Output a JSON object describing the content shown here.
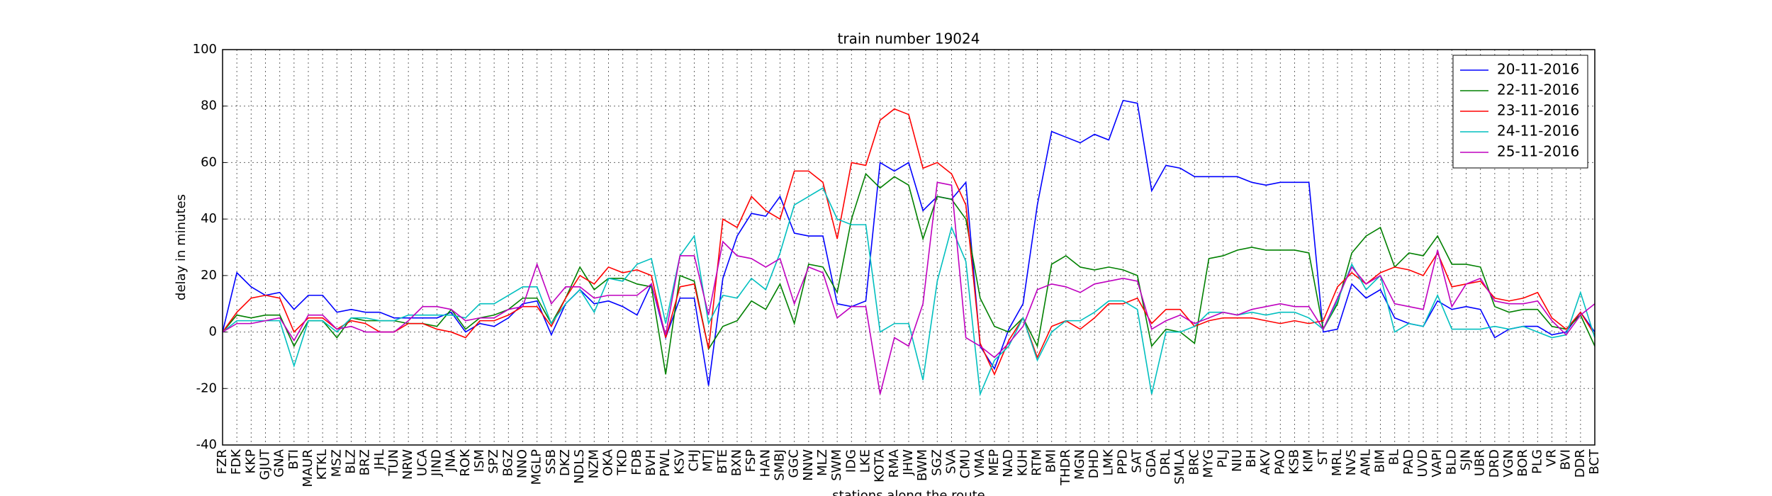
{
  "chart_data": {
    "type": "line",
    "title": "train number 19024",
    "x_label": "stations along the route",
    "y_label": "delay in minutes",
    "categories": [
      "FZR",
      "FDK",
      "KKP",
      "GJUT",
      "GNA",
      "BTI",
      "MAUR",
      "KTKL",
      "MSZ",
      "BLZ",
      "BRZ",
      "JHL",
      "TUN",
      "NRW",
      "UCA",
      "JIND",
      "JNA",
      "ROK",
      "ISM",
      "SPZ",
      "BGZ",
      "NNO",
      "MGLP",
      "SSB",
      "DKZ",
      "NDLS",
      "NZM",
      "OKA",
      "TKD",
      "FDB",
      "BVH",
      "PWL",
      "KSV",
      "CHJ",
      "MTJ",
      "BTE",
      "BXN",
      "FSP",
      "HAN",
      "SMBJ",
      "GGC",
      "NNW",
      "MLZ",
      "SWM",
      "IDG",
      "LKE",
      "KOTA",
      "RMA",
      "JHW",
      "BWM",
      "SGZ",
      "SVA",
      "CMU",
      "VMA",
      "MEP",
      "NAD",
      "KUH",
      "RTM",
      "BMI",
      "THDR",
      "MGN",
      "DHD",
      "LMK",
      "PPD",
      "SAT",
      "GDA",
      "DRL",
      "SMLA",
      "BRC",
      "MYG",
      "PLJ",
      "NIU",
      "BH",
      "AKV",
      "PAO",
      "KSB",
      "KIM",
      "ST",
      "MRL",
      "NVS",
      "AML",
      "BIM",
      "BL",
      "PAD",
      "UVD",
      "VAPI",
      "BLD",
      "SJN",
      "UBR",
      "DRD",
      "VGN",
      "BOR",
      "PLG",
      "VR",
      "BVI",
      "DDR",
      "BCT"
    ],
    "series": [
      {
        "name": "20-11-2016",
        "color": "#0000ff",
        "values": [
          0,
          21,
          16,
          13,
          14,
          8,
          13,
          13,
          7,
          8,
          7,
          7,
          5,
          5,
          5,
          5,
          7,
          0,
          3,
          2,
          5,
          10,
          11,
          -1,
          10,
          15,
          10,
          11,
          9,
          6,
          17,
          -2,
          12,
          12,
          -19,
          19,
          34,
          42,
          41,
          48,
          35,
          34,
          34,
          10,
          9,
          11,
          60,
          57,
          60,
          43,
          48,
          47,
          53,
          -5,
          -13,
          1,
          10,
          45,
          71,
          69,
          67,
          70,
          68,
          82,
          81,
          50,
          59,
          58,
          55,
          55,
          55,
          55,
          53,
          52,
          53,
          53,
          53,
          0,
          1,
          17,
          12,
          15,
          5,
          3,
          2,
          11,
          8,
          9,
          8,
          -2,
          1,
          2,
          2,
          -1,
          0,
          7,
          0
        ]
      },
      {
        "name": "22-11-2016",
        "color": "#008000",
        "values": [
          0,
          6,
          5,
          6,
          6,
          -5,
          4,
          4,
          -2,
          5,
          4,
          4,
          4,
          3,
          3,
          2,
          8,
          1,
          5,
          6,
          8,
          12,
          12,
          3,
          12,
          23,
          15,
          19,
          19,
          17,
          16,
          -15,
          20,
          18,
          -6,
          2,
          4,
          11,
          8,
          17,
          3,
          24,
          23,
          14,
          40,
          56,
          51,
          55,
          52,
          33,
          48,
          47,
          40,
          12,
          2,
          0,
          5,
          -5,
          24,
          27,
          23,
          22,
          23,
          22,
          20,
          -5,
          1,
          0,
          -4,
          26,
          27,
          29,
          30,
          29,
          29,
          29,
          28,
          1,
          10,
          28,
          34,
          37,
          23,
          28,
          27,
          34,
          24,
          24,
          23,
          9,
          7,
          8,
          8,
          2,
          1,
          6,
          -5
        ]
      },
      {
        "name": "23-11-2016",
        "color": "#ff0000",
        "values": [
          0,
          7,
          12,
          13,
          12,
          0,
          5,
          5,
          1,
          4,
          3,
          0,
          0,
          3,
          3,
          1,
          0,
          -2,
          4,
          4,
          6,
          9,
          9,
          2,
          12,
          20,
          17,
          23,
          21,
          22,
          20,
          -2,
          16,
          17,
          -6,
          40,
          37,
          48,
          43,
          40,
          57,
          57,
          53,
          33,
          60,
          59,
          75,
          79,
          77,
          58,
          60,
          56,
          45,
          -4,
          -15,
          -3,
          5,
          -9,
          2,
          4,
          1,
          5,
          10,
          10,
          12,
          3,
          8,
          8,
          2,
          4,
          5,
          5,
          5,
          4,
          3,
          4,
          3,
          4,
          16,
          21,
          17,
          21,
          23,
          22,
          20,
          28,
          16,
          17,
          18,
          12,
          11,
          12,
          14,
          5,
          1,
          7,
          -1
        ]
      },
      {
        "name": "24-11-2016",
        "color": "#00bfbf",
        "values": [
          0,
          4,
          4,
          4,
          4,
          -12,
          4,
          4,
          0,
          5,
          5,
          4,
          4,
          6,
          6,
          6,
          6,
          5,
          10,
          10,
          13,
          16,
          16,
          3,
          10,
          15,
          7,
          19,
          18,
          24,
          26,
          3,
          27,
          34,
          3,
          13,
          12,
          19,
          15,
          28,
          45,
          48,
          51,
          40,
          38,
          38,
          0,
          3,
          3,
          -17,
          18,
          37,
          25,
          -22,
          -10,
          -5,
          5,
          -10,
          0,
          4,
          4,
          7,
          11,
          11,
          8,
          -22,
          0,
          0,
          2,
          7,
          7,
          6,
          7,
          6,
          7,
          7,
          5,
          1,
          11,
          24,
          15,
          20,
          0,
          3,
          2,
          13,
          1,
          1,
          1,
          2,
          1,
          2,
          0,
          -2,
          -1,
          14,
          -2
        ]
      },
      {
        "name": "25-11-2016",
        "color": "#bf00bf",
        "values": [
          0,
          3,
          3,
          4,
          5,
          -3,
          6,
          6,
          1,
          2,
          0,
          0,
          0,
          4,
          9,
          9,
          8,
          4,
          5,
          5,
          8,
          9,
          24,
          10,
          16,
          16,
          12,
          13,
          13,
          13,
          17,
          -1,
          27,
          27,
          6,
          32,
          27,
          26,
          23,
          26,
          10,
          23,
          21,
          5,
          9,
          9,
          -22,
          -2,
          -5,
          10,
          53,
          52,
          -2,
          -5,
          -9,
          -4,
          2,
          15,
          17,
          16,
          14,
          17,
          18,
          19,
          18,
          1,
          4,
          6,
          3,
          5,
          7,
          6,
          8,
          9,
          10,
          9,
          9,
          1,
          12,
          23,
          17,
          20,
          10,
          9,
          8,
          29,
          9,
          17,
          19,
          11,
          10,
          10,
          11,
          4,
          -1,
          6,
          10
        ]
      }
    ],
    "ylim": [
      -40,
      100
    ],
    "yticks": [
      -40,
      -20,
      0,
      20,
      40,
      60,
      80,
      100
    ],
    "grid": true,
    "legend": "upper right"
  }
}
